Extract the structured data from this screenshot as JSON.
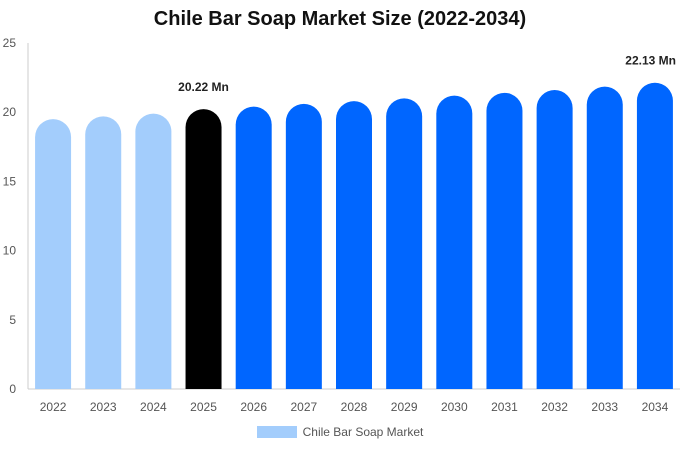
{
  "chart_data": {
    "type": "bar",
    "title": "Chile Bar Soap Market Size (2022-2034)",
    "xlabel": "",
    "ylabel": "",
    "ylim": [
      0,
      25
    ],
    "yticks": [
      0,
      5,
      10,
      15,
      20,
      25
    ],
    "grid": false,
    "legend_position": "bottom",
    "categories": [
      "2022",
      "2023",
      "2024",
      "2025",
      "2026",
      "2027",
      "2028",
      "2029",
      "2030",
      "2031",
      "2032",
      "2033",
      "2034"
    ],
    "series": [
      {
        "name": "Chile Bar Soap Market",
        "values": [
          19.5,
          19.7,
          19.9,
          20.22,
          20.4,
          20.6,
          20.8,
          21.0,
          21.2,
          21.4,
          21.6,
          21.85,
          22.13
        ]
      }
    ],
    "bar_colors": [
      "#a3cdfc",
      "#a3cdfc",
      "#a3cdfc",
      "#000000",
      "#0066ff",
      "#0066ff",
      "#0066ff",
      "#0066ff",
      "#0066ff",
      "#0066ff",
      "#0066ff",
      "#0066ff",
      "#0066ff"
    ],
    "annotations": [
      {
        "category": "2025",
        "text": "20.22 Mn"
      },
      {
        "category": "2034",
        "text": "22.13 Mn"
      }
    ],
    "legend_color": "#a3cdfc",
    "axis_color": "#cccccc"
  }
}
